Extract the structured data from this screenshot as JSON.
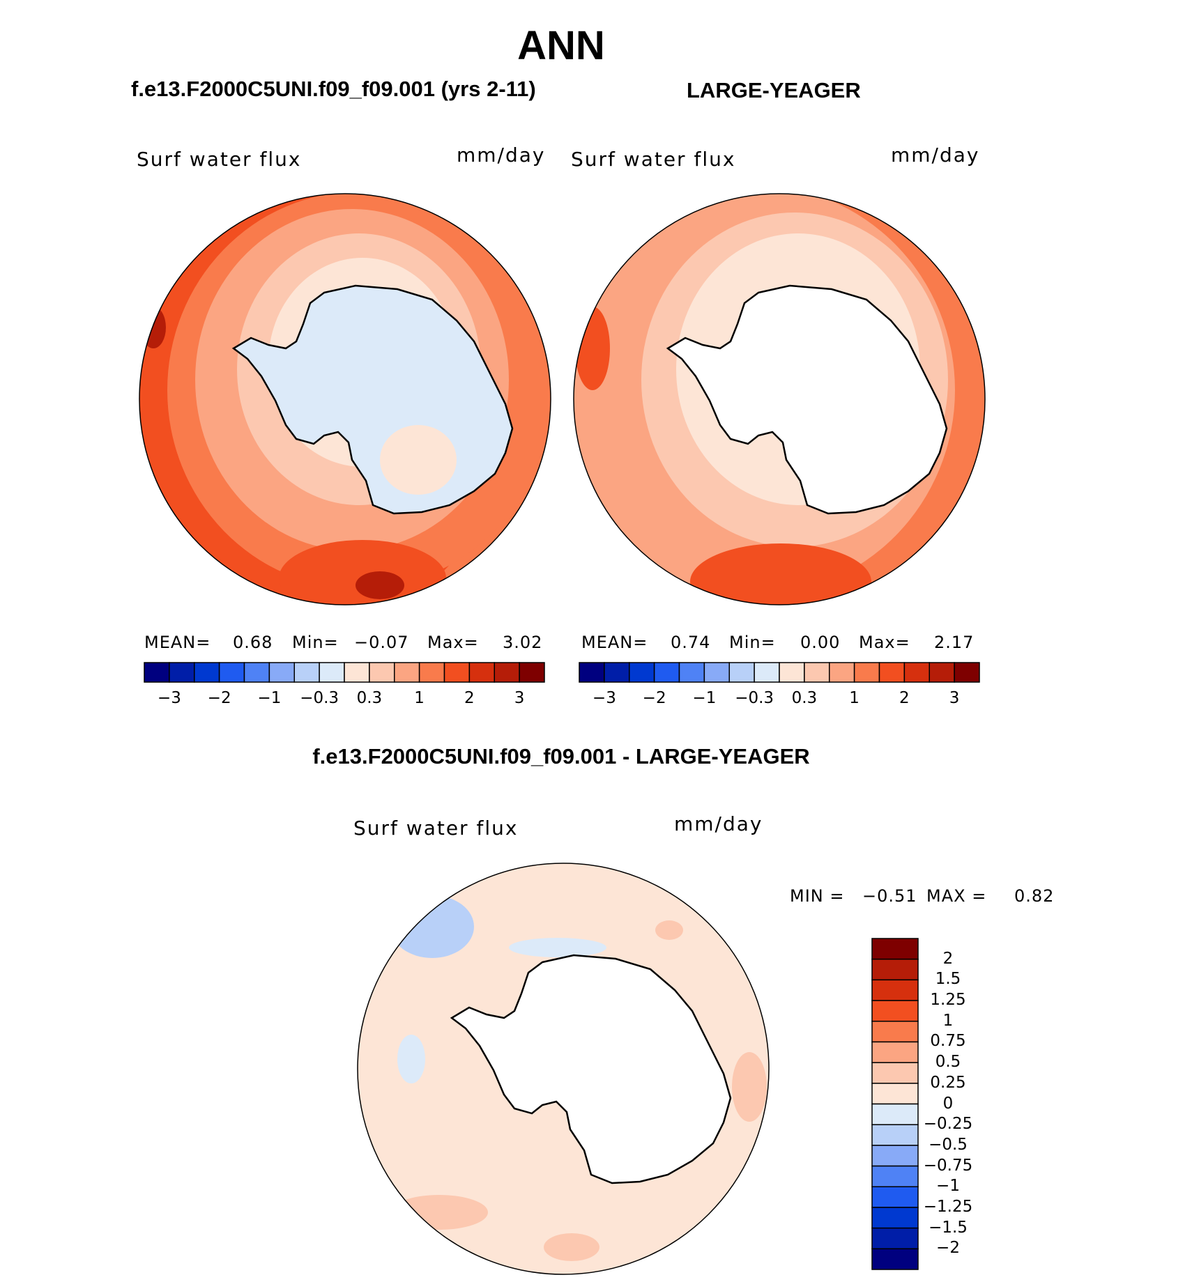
{
  "figure": {
    "season": "ANN",
    "left_case": "f.e13.F2000C5UNI.f09_f09.001 (yrs 2-11)",
    "right_case": "LARGE-YEAGER",
    "diff_title": "f.e13.F2000C5UNI.f09_f09.001 - LARGE-YEAGER"
  },
  "panels": [
    {
      "variable": "Surf water flux",
      "units": "mm/day",
      "stats": {
        "mean_label": "MEAN=",
        "mean": "0.68",
        "min_label": "Min=",
        "min": "−0.07",
        "max_label": "Max=",
        "max": "3.02"
      }
    },
    {
      "variable": "Surf water flux",
      "units": "mm/day",
      "stats": {
        "mean_label": "MEAN=",
        "mean": "0.74",
        "min_label": "Min=",
        "min": "0.00",
        "max_label": "Max=",
        "max": "2.17"
      }
    },
    {
      "variable": "Surf water flux",
      "units": "mm/day",
      "stats": {
        "min_label": "MIN =",
        "min": "−0.51",
        "max_label": "MAX =",
        "max": "0.82"
      }
    }
  ],
  "colorbar_main": {
    "tick_labels": [
      "−3",
      "−2",
      "−1",
      "−0.3",
      "0.3",
      "1",
      "2",
      "3"
    ],
    "colors": [
      "#00007f",
      "#001ea8",
      "#0039d0",
      "#1f5bf0",
      "#4f82f5",
      "#88aaf7",
      "#b8d0f8",
      "#dceaf9",
      "#fde5d6",
      "#fcc8b0",
      "#fba582",
      "#f97b4c",
      "#f24f20",
      "#d6300e",
      "#b51d08",
      "#7e0000"
    ]
  },
  "colorbar_diff": {
    "tick_labels": [
      "2",
      "1.5",
      "1.25",
      "1",
      "0.75",
      "0.5",
      "0.25",
      "0",
      "−0.25",
      "−0.5",
      "−0.75",
      "−1",
      "−1.25",
      "−1.5",
      "−2"
    ],
    "colors": [
      "#7e0000",
      "#b51d08",
      "#d6300e",
      "#f24f20",
      "#f97b4c",
      "#fba582",
      "#fcc8b0",
      "#fde5d6",
      "#dceaf9",
      "#b8d0f8",
      "#88aaf7",
      "#4f82f5",
      "#1f5bf0",
      "#0039d0",
      "#001ea8",
      "#00007f"
    ]
  },
  "map_colors": {
    "dark_red": "#b51d08",
    "red": "#f24f20",
    "orange": "#f97b4c",
    "salmon": "#fba582",
    "peach": "#fcc8b0",
    "cream": "#fde5d6",
    "light_blue": "#dceaf9",
    "blue": "#b8d0f8",
    "land": "#ffffff"
  }
}
